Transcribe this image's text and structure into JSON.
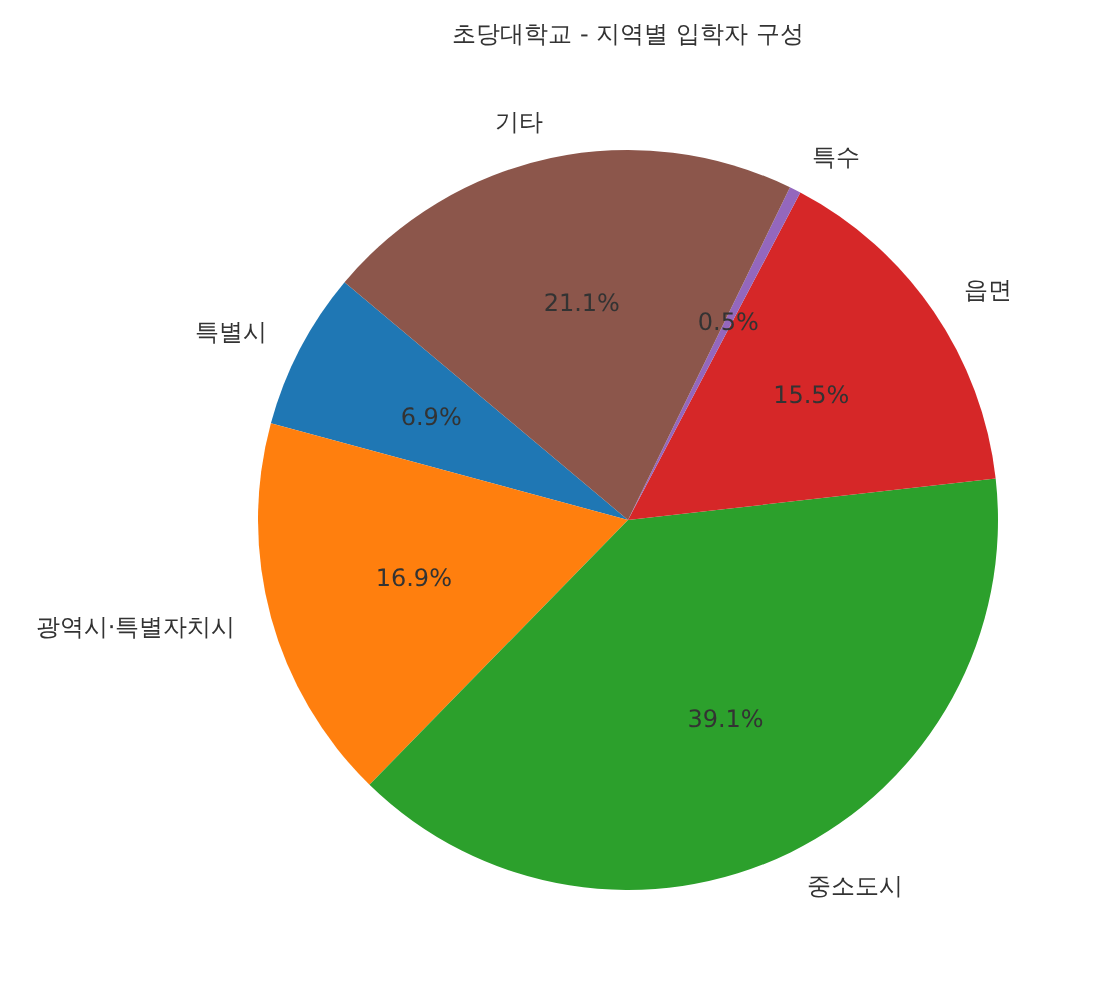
{
  "chart_data": {
    "type": "pie",
    "title": "초당대학교 - 지역별 입학자 구성",
    "categories": [
      "특별시",
      "광역시·특별자치시",
      "중소도시",
      "읍면",
      "특수",
      "기타"
    ],
    "values": [
      6.9,
      16.9,
      39.1,
      15.5,
      0.5,
      21.1
    ],
    "colors": [
      "#1f77b4",
      "#ff7f0e",
      "#2ca02c",
      "#d62728",
      "#9467bd",
      "#8c564b"
    ],
    "value_labels": [
      "6.9%",
      "16.9%",
      "39.1%",
      "15.5%",
      "0.5%",
      "21.1%"
    ],
    "legend": false
  }
}
